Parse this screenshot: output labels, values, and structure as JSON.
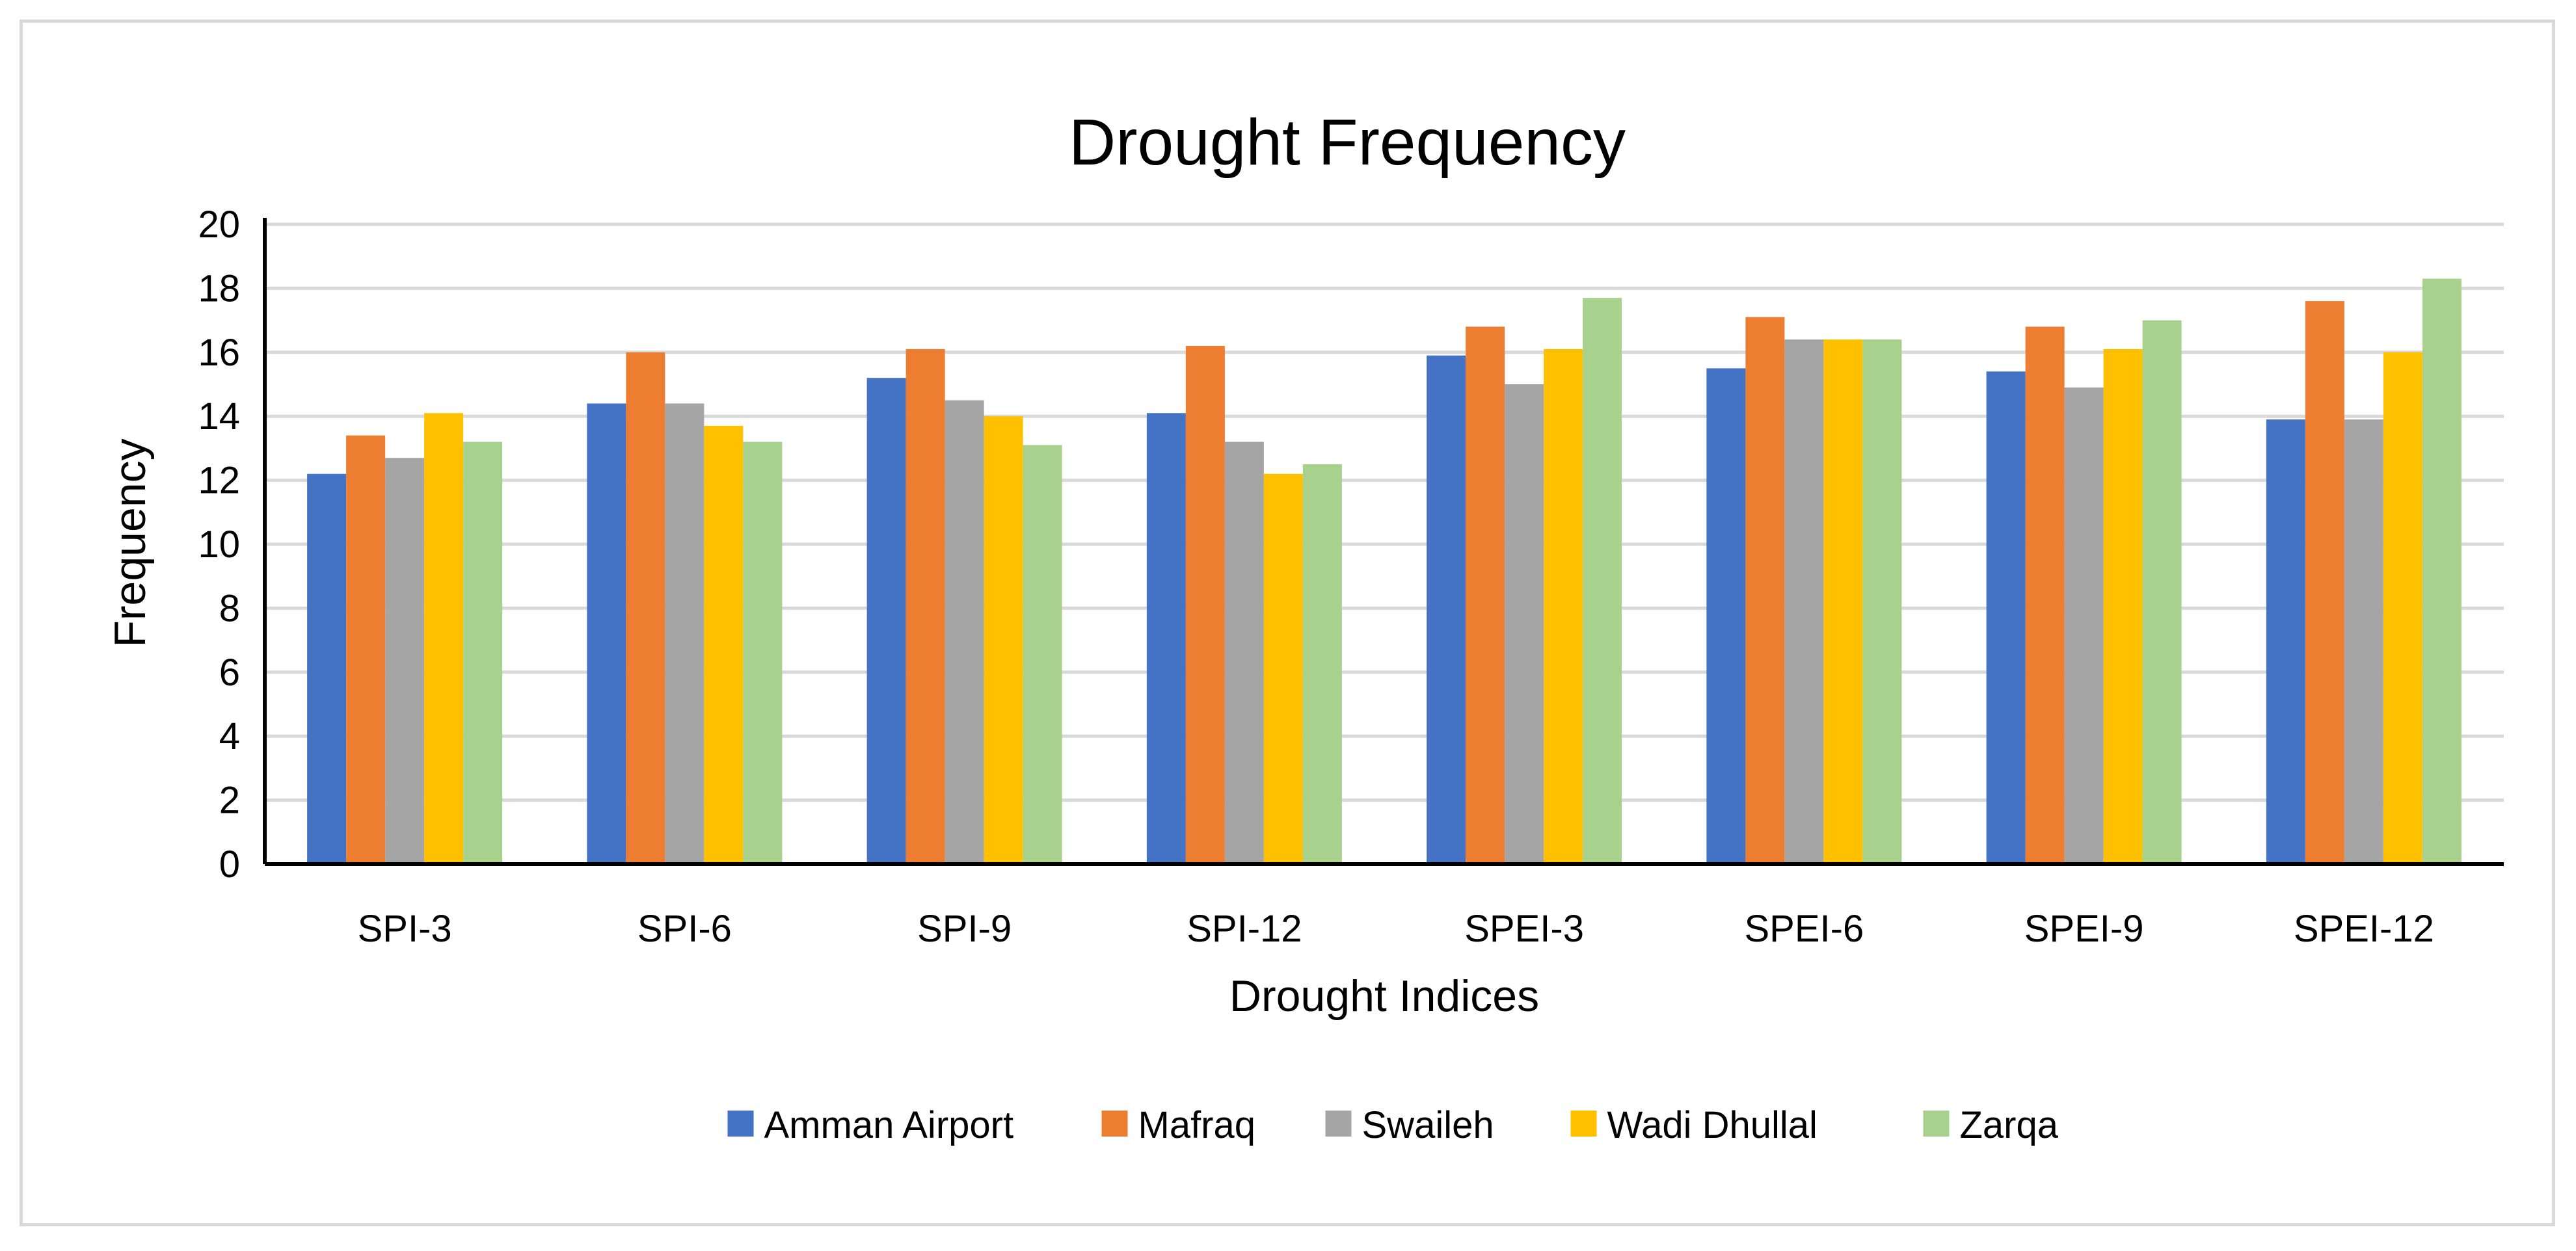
{
  "chart_data": {
    "type": "bar",
    "title": "Drought Frequency",
    "xlabel": "Drought Indices",
    "ylabel": "Frequency",
    "ylim": [
      0,
      20
    ],
    "ytick_step": 2,
    "ytick_labels": [
      "0",
      "2",
      "4",
      "6",
      "8",
      "10",
      "12",
      "14",
      "16",
      "18",
      "20"
    ],
    "grid": true,
    "legend_position": "bottom",
    "categories": [
      "SPI-3",
      "SPI-6",
      "SPI-9",
      "SPI-12",
      "SPEI-3",
      "SPEI-6",
      "SPEI-9",
      "SPEI-12"
    ],
    "series": [
      {
        "name": "Amman Airport",
        "color": "#4472C4",
        "values": [
          12.2,
          14.4,
          15.2,
          14.1,
          15.9,
          15.5,
          15.4,
          13.9
        ]
      },
      {
        "name": "Mafraq",
        "color": "#ED7D31",
        "values": [
          13.4,
          16.0,
          16.1,
          16.2,
          16.8,
          17.1,
          16.8,
          17.6
        ]
      },
      {
        "name": "Swaileh",
        "color": "#A5A5A5",
        "values": [
          12.7,
          14.4,
          14.5,
          13.2,
          15.0,
          16.4,
          14.9,
          13.9
        ]
      },
      {
        "name": "Wadi Dhullal",
        "color": "#FFC000",
        "values": [
          14.1,
          13.7,
          14.0,
          12.2,
          16.1,
          16.4,
          16.1,
          16.0
        ]
      },
      {
        "name": "Zarqa",
        "color": "#A9D18E",
        "values": [
          13.2,
          13.2,
          13.1,
          12.5,
          17.7,
          16.4,
          17.0,
          18.3
        ]
      }
    ]
  }
}
